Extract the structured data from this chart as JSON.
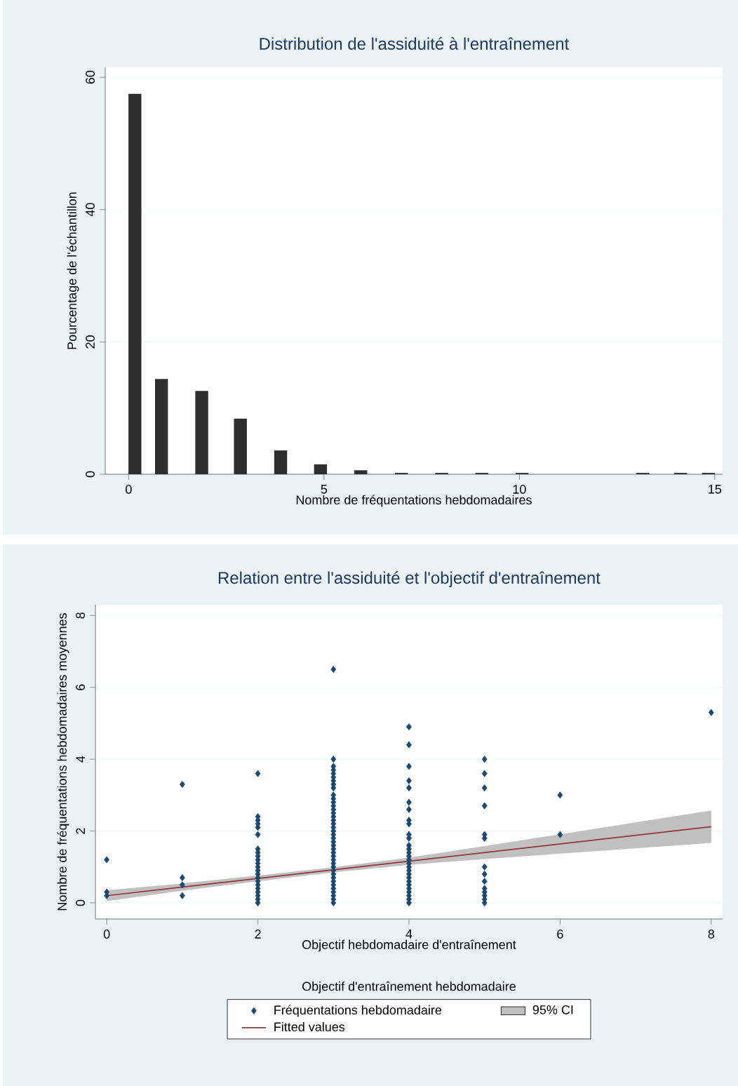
{
  "chart_data": [
    {
      "type": "bar",
      "title": "Distribution de l'assiduité à l'entraînement",
      "xlabel": "Nombre de fréquentations hebdomadaires",
      "ylabel": "Pourcentage de l'échantillon",
      "x": [
        0.16,
        0.84,
        1.87,
        2.86,
        3.89,
        4.91,
        5.94,
        6.98,
        8.01,
        9.04,
        10.07,
        13.16,
        14.13,
        14.84
      ],
      "values": [
        57.5,
        14.4,
        12.6,
        8.4,
        3.6,
        1.5,
        0.6,
        0.2,
        0.2,
        0.2,
        0.2,
        0.2,
        0.2,
        0.2
      ],
      "color": "#2e2e2e",
      "xlim": [
        -0.6,
        15.2
      ],
      "ylim": [
        0,
        61.5
      ],
      "xticks": [
        0,
        5,
        10,
        15
      ],
      "yticks": [
        0,
        20,
        40,
        60
      ],
      "grid": "y"
    },
    {
      "type": "scatter",
      "title": "Relation entre l'assiduité et l'objectif d'entraînement",
      "xlabel": "Objectif hebdomadaire d'entraînement",
      "ylabel": "Nombre de fréquentations hebdomadaires moyennes",
      "annotations": [
        "Objectif d'entraînement hebdomadaire"
      ],
      "series": [
        {
          "name": "Fréquentations hebdomadaire",
          "type": "scatter",
          "color": "#1a476f",
          "marker": "diamond",
          "x": [
            0,
            0,
            0,
            1,
            1,
            1,
            1,
            2,
            2,
            2,
            2,
            2,
            2,
            2,
            2,
            2,
            2,
            2,
            2,
            2,
            2,
            2,
            2,
            2,
            2,
            2,
            2,
            2,
            2,
            3,
            3,
            3,
            3,
            3,
            3,
            3,
            3,
            3,
            3,
            3,
            3,
            3,
            3,
            3,
            3,
            3,
            3,
            3,
            3,
            3,
            3,
            3,
            3,
            3,
            3,
            3,
            3,
            3,
            3,
            3,
            3,
            3,
            3,
            3,
            3,
            3,
            3,
            3,
            3,
            4,
            4,
            4,
            4,
            4,
            4,
            4,
            4,
            4,
            4,
            4,
            4,
            4,
            4,
            4,
            4,
            4,
            4,
            4,
            4,
            4,
            4,
            4,
            4,
            4,
            4,
            4,
            4,
            5,
            5,
            5,
            5,
            5,
            5,
            5,
            5,
            5,
            5,
            5,
            5,
            5,
            5,
            6,
            6,
            8
          ],
          "values": [
            0.2,
            0.3,
            1.2,
            0.2,
            0.5,
            0.7,
            3.3,
            0,
            0.1,
            0.2,
            0.3,
            0.4,
            0.5,
            0.6,
            0.7,
            0.8,
            0.9,
            1.0,
            1.1,
            1.2,
            1.3,
            1.4,
            1.5,
            1.9,
            2.1,
            2.2,
            2.3,
            2.4,
            3.6,
            0,
            0.1,
            0.2,
            0.3,
            0.4,
            0.5,
            0.6,
            0.7,
            0.8,
            0.9,
            1.0,
            1.1,
            1.2,
            1.3,
            1.4,
            1.5,
            1.6,
            1.7,
            1.8,
            1.9,
            2.0,
            2.1,
            2.2,
            2.3,
            2.4,
            2.5,
            2.6,
            2.7,
            2.8,
            2.9,
            3.0,
            3.2,
            3.3,
            3.4,
            3.5,
            3.6,
            3.7,
            3.8,
            4.0,
            6.5,
            0,
            0.1,
            0.2,
            0.3,
            0.4,
            0.5,
            0.6,
            0.7,
            0.8,
            0.9,
            1.0,
            1.1,
            1.2,
            1.3,
            1.4,
            1.5,
            1.6,
            1.8,
            1.9,
            2.2,
            2.3,
            2.6,
            2.8,
            3.2,
            3.4,
            3.8,
            4.4,
            4.9,
            0,
            0.1,
            0.2,
            0.3,
            0.4,
            0.6,
            0.8,
            1.0,
            1.8,
            1.9,
            2.7,
            3.2,
            3.6,
            4.0,
            1.9,
            3.0,
            5.3
          ]
        },
        {
          "name": "95% CI",
          "type": "area",
          "color": "#c0c0c0",
          "x": [
            0,
            1,
            2,
            3,
            4,
            5,
            6,
            7,
            8
          ],
          "values": [
            null,
            null,
            null,
            null,
            null,
            null,
            null,
            null,
            null
          ],
          "lower": [
            0.05,
            0.34,
            0.6,
            0.85,
            1.06,
            1.22,
            1.37,
            1.52,
            1.67
          ],
          "upper": [
            0.35,
            0.54,
            0.76,
            0.99,
            1.26,
            1.58,
            1.91,
            2.24,
            2.57
          ]
        },
        {
          "name": "Fitted values",
          "type": "line",
          "color": "#90353b",
          "x": [
            0,
            8
          ],
          "values": [
            0.2,
            2.12
          ]
        }
      ],
      "xlim": [
        -0.15,
        8.15
      ],
      "ylim": [
        -0.45,
        8.3
      ],
      "xticks": [
        0,
        2,
        4,
        6,
        8
      ],
      "yticks": [
        0,
        2,
        4,
        6,
        8
      ],
      "grid": "y",
      "legend": "bottom"
    }
  ]
}
